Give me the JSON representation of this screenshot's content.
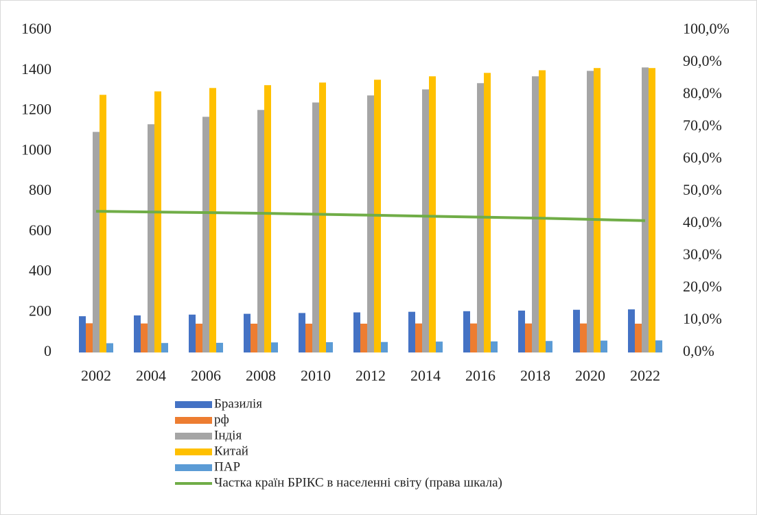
{
  "chart_data": {
    "type": "bar",
    "categories": [
      "2002",
      "2004",
      "2006",
      "2008",
      "2010",
      "2012",
      "2014",
      "2016",
      "2018",
      "2020",
      "2022"
    ],
    "series": [
      {
        "name": "Бразилія",
        "color": "#4472c4",
        "values": [
          180,
          184,
          188,
          192,
          196,
          199,
          202,
          205,
          208,
          212,
          214
        ]
      },
      {
        "name": "рф",
        "color": "#ed7d31",
        "values": [
          145,
          144,
          143,
          143,
          143,
          143,
          144,
          144,
          144,
          144,
          143
        ]
      },
      {
        "name": "Індія",
        "color": "#a5a5a5",
        "values": [
          1095,
          1133,
          1170,
          1204,
          1241,
          1276,
          1306,
          1337,
          1371,
          1398,
          1415
        ]
      },
      {
        "name": "Китай",
        "color": "#ffc000",
        "values": [
          1279,
          1296,
          1313,
          1327,
          1340,
          1354,
          1371,
          1388,
          1401,
          1412,
          1412
        ]
      },
      {
        "name": "ПАР",
        "color": "#5b9bd5",
        "values": [
          46,
          47,
          48,
          50,
          51,
          52,
          54,
          55,
          57,
          59,
          60
        ]
      },
      {
        "name": "Частка країн БРІКС в населенні світу (права шкала)",
        "color": "#70ad47",
        "type": "line",
        "axis": "y2",
        "values": [
          43.8,
          43.6,
          43.4,
          43.2,
          42.9,
          42.6,
          42.3,
          42.0,
          41.7,
          41.3,
          40.9
        ]
      }
    ],
    "ylim": [
      0,
      1600
    ],
    "yticks": [
      0,
      200,
      400,
      600,
      800,
      1000,
      1200,
      1400,
      1600
    ],
    "y2lim": [
      0,
      100
    ],
    "y2ticks": [
      {
        "value": 0,
        "label": "0,0%"
      },
      {
        "value": 10,
        "label": "10,0%"
      },
      {
        "value": 20,
        "label": "20,0%"
      },
      {
        "value": 30,
        "label": "30,0%"
      },
      {
        "value": 40,
        "label": "40,0%"
      },
      {
        "value": 50,
        "label": "50,0%"
      },
      {
        "value": 60,
        "label": "60,0%"
      },
      {
        "value": 70,
        "label": "70,0%"
      },
      {
        "value": 80,
        "label": "80,0%"
      },
      {
        "value": 90,
        "label": "90,0%"
      },
      {
        "value": 100,
        "label": "100,0%"
      }
    ],
    "grid": false,
    "legend": "bottom"
  }
}
